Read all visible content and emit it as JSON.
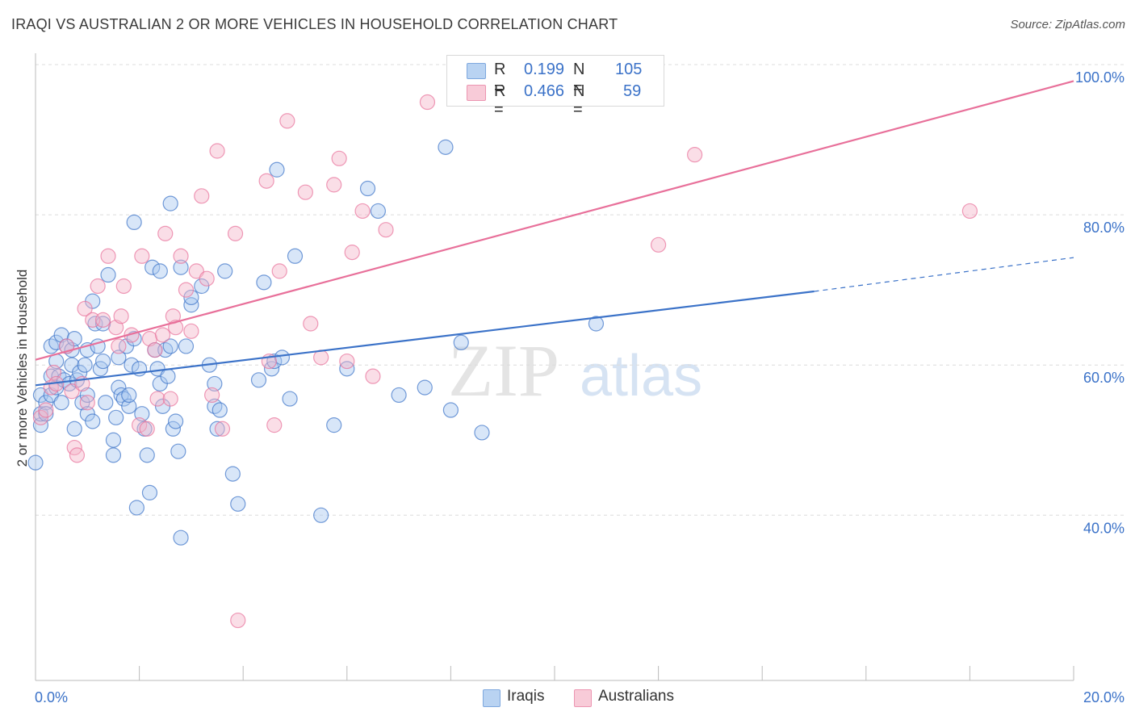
{
  "title": "IRAQI VS AUSTRALIAN 2 OR MORE VEHICLES IN HOUSEHOLD CORRELATION CHART",
  "source": "Source: ZipAtlas.com",
  "watermark": {
    "zip": "ZIP",
    "atlas": "atlas"
  },
  "legend": [
    {
      "swatch_color": "#a8c8ef",
      "r_label": "R =",
      "r_value": "0.199",
      "n_label": "N =",
      "n_value": "105"
    },
    {
      "swatch_color": "#f5b6c9",
      "r_label": "R =",
      "r_value": "0.466",
      "n_label": "N =",
      "n_value": "59"
    }
  ],
  "bottom_legend": [
    {
      "label": "Iraqis",
      "color": "#a8c8ef"
    },
    {
      "label": "Australians",
      "color": "#f5b6c9"
    }
  ],
  "chart_data": {
    "type": "scatter",
    "title": "IRAQI VS AUSTRALIAN 2 OR MORE VEHICLES IN HOUSEHOLD CORRELATION CHART",
    "xlabel": "",
    "ylabel": "2 or more Vehicles in Household",
    "xlim": [
      0,
      20
    ],
    "ylim": [
      18,
      100
    ],
    "x_tick_labels": [
      {
        "value": 0,
        "label": "0.0%"
      },
      {
        "value": 20,
        "label": "20.0%"
      }
    ],
    "y_tick_labels": [
      {
        "value": 40,
        "label": "40.0%"
      },
      {
        "value": 60,
        "label": "60.0%"
      },
      {
        "value": 80,
        "label": "80.0%"
      },
      {
        "value": 100,
        "label": "100.0%"
      }
    ],
    "grid": true,
    "series": [
      {
        "name": "Iraqis",
        "color": "#3b72c8",
        "fill": "#a8c8ef",
        "trend": {
          "x0": 0,
          "y0": 57.3,
          "x1": 15,
          "y1": 69.8,
          "dashed_to_x": 20,
          "dashed_to_y": 74.3
        },
        "points": [
          [
            0.0,
            47.0
          ],
          [
            0.1,
            52.0
          ],
          [
            0.1,
            53.5
          ],
          [
            0.1,
            56.0
          ],
          [
            0.2,
            55.0
          ],
          [
            0.2,
            53.5
          ],
          [
            0.3,
            56.0
          ],
          [
            0.3,
            58.5
          ],
          [
            0.3,
            62.5
          ],
          [
            0.4,
            57.0
          ],
          [
            0.4,
            60.5
          ],
          [
            0.4,
            63.0
          ],
          [
            0.45,
            58.5
          ],
          [
            0.5,
            55.0
          ],
          [
            0.5,
            64.0
          ],
          [
            0.55,
            58.0
          ],
          [
            0.6,
            62.5
          ],
          [
            0.65,
            57.5
          ],
          [
            0.7,
            60.0
          ],
          [
            0.7,
            62.0
          ],
          [
            0.75,
            51.5
          ],
          [
            0.75,
            63.5
          ],
          [
            0.8,
            58.0
          ],
          [
            0.85,
            59.0
          ],
          [
            0.9,
            55.0
          ],
          [
            0.95,
            60.0
          ],
          [
            1.0,
            53.5
          ],
          [
            1.0,
            56.0
          ],
          [
            1.0,
            62.0
          ],
          [
            1.1,
            68.5
          ],
          [
            1.1,
            52.5
          ],
          [
            1.15,
            65.5
          ],
          [
            1.2,
            62.5
          ],
          [
            1.25,
            59.5
          ],
          [
            1.3,
            60.5
          ],
          [
            1.3,
            65.5
          ],
          [
            1.35,
            55.0
          ],
          [
            1.4,
            72.0
          ],
          [
            1.5,
            48.0
          ],
          [
            1.5,
            50.0
          ],
          [
            1.55,
            53.0
          ],
          [
            1.6,
            57.0
          ],
          [
            1.6,
            61.0
          ],
          [
            1.65,
            56.0
          ],
          [
            1.7,
            55.5
          ],
          [
            1.75,
            62.5
          ],
          [
            1.8,
            54.5
          ],
          [
            1.8,
            56.0
          ],
          [
            1.85,
            60.0
          ],
          [
            1.9,
            63.5
          ],
          [
            1.9,
            79.0
          ],
          [
            1.95,
            41.0
          ],
          [
            2.0,
            59.5
          ],
          [
            2.05,
            53.5
          ],
          [
            2.1,
            51.5
          ],
          [
            2.15,
            48.0
          ],
          [
            2.2,
            43.0
          ],
          [
            2.25,
            73.0
          ],
          [
            2.3,
            62.0
          ],
          [
            2.35,
            59.5
          ],
          [
            2.4,
            57.5
          ],
          [
            2.4,
            72.5
          ],
          [
            2.45,
            54.5
          ],
          [
            2.5,
            62.0
          ],
          [
            2.55,
            58.5
          ],
          [
            2.6,
            62.5
          ],
          [
            2.6,
            81.5
          ],
          [
            2.65,
            51.5
          ],
          [
            2.7,
            52.5
          ],
          [
            2.75,
            48.5
          ],
          [
            2.8,
            73.0
          ],
          [
            2.8,
            37.0
          ],
          [
            2.9,
            62.5
          ],
          [
            3.0,
            68.0
          ],
          [
            3.0,
            69.0
          ],
          [
            3.2,
            70.5
          ],
          [
            3.35,
            60.0
          ],
          [
            3.45,
            54.5
          ],
          [
            3.45,
            57.5
          ],
          [
            3.5,
            51.5
          ],
          [
            3.55,
            54.0
          ],
          [
            3.65,
            72.5
          ],
          [
            3.8,
            45.5
          ],
          [
            3.9,
            41.5
          ],
          [
            4.3,
            58.0
          ],
          [
            4.4,
            71.0
          ],
          [
            4.55,
            59.5
          ],
          [
            4.6,
            60.5
          ],
          [
            4.65,
            86.0
          ],
          [
            4.75,
            61.0
          ],
          [
            4.9,
            55.5
          ],
          [
            5.0,
            74.5
          ],
          [
            5.5,
            40.0
          ],
          [
            5.75,
            52.0
          ],
          [
            6.0,
            59.5
          ],
          [
            6.4,
            83.5
          ],
          [
            6.6,
            80.5
          ],
          [
            7.0,
            56.0
          ],
          [
            7.5,
            57.0
          ],
          [
            7.9,
            89.0
          ],
          [
            8.0,
            54.0
          ],
          [
            8.2,
            63.0
          ],
          [
            8.6,
            51.0
          ],
          [
            10.8,
            65.5
          ]
        ]
      },
      {
        "name": "Australians",
        "color": "#e8709a",
        "fill": "#f5b6c9",
        "trend": {
          "x0": 0,
          "y0": 60.7,
          "x1": 20,
          "y1": 97.8
        },
        "points": [
          [
            0.1,
            53.0
          ],
          [
            0.2,
            54.0
          ],
          [
            0.3,
            57.0
          ],
          [
            0.35,
            59.0
          ],
          [
            0.4,
            57.5
          ],
          [
            0.6,
            62.5
          ],
          [
            0.7,
            56.5
          ],
          [
            0.75,
            49.0
          ],
          [
            0.8,
            48.0
          ],
          [
            0.9,
            57.5
          ],
          [
            0.95,
            67.5
          ],
          [
            1.0,
            55.0
          ],
          [
            1.1,
            66.0
          ],
          [
            1.2,
            70.5
          ],
          [
            1.3,
            66.0
          ],
          [
            1.4,
            74.5
          ],
          [
            1.55,
            65.0
          ],
          [
            1.6,
            62.5
          ],
          [
            1.65,
            66.5
          ],
          [
            1.7,
            70.5
          ],
          [
            1.85,
            64.0
          ],
          [
            2.0,
            52.0
          ],
          [
            2.05,
            74.5
          ],
          [
            2.15,
            51.5
          ],
          [
            2.2,
            63.5
          ],
          [
            2.3,
            62.0
          ],
          [
            2.35,
            55.5
          ],
          [
            2.45,
            64.0
          ],
          [
            2.5,
            77.5
          ],
          [
            2.6,
            55.5
          ],
          [
            2.65,
            66.5
          ],
          [
            2.7,
            65.0
          ],
          [
            2.8,
            74.5
          ],
          [
            2.9,
            70.0
          ],
          [
            3.0,
            64.5
          ],
          [
            3.1,
            72.5
          ],
          [
            3.2,
            82.5
          ],
          [
            3.3,
            71.5
          ],
          [
            3.4,
            56.0
          ],
          [
            3.5,
            88.5
          ],
          [
            3.6,
            51.5
          ],
          [
            3.85,
            77.5
          ],
          [
            3.9,
            26.0
          ],
          [
            4.45,
            84.5
          ],
          [
            4.5,
            60.5
          ],
          [
            4.6,
            52.0
          ],
          [
            4.7,
            72.5
          ],
          [
            4.85,
            92.5
          ],
          [
            5.2,
            83.0
          ],
          [
            5.3,
            65.5
          ],
          [
            5.5,
            61.0
          ],
          [
            5.75,
            84.0
          ],
          [
            5.85,
            87.5
          ],
          [
            6.0,
            60.5
          ],
          [
            6.1,
            75.0
          ],
          [
            6.3,
            80.5
          ],
          [
            6.5,
            58.5
          ],
          [
            6.75,
            78.0
          ],
          [
            7.55,
            95.0
          ],
          [
            12.0,
            76.0
          ],
          [
            12.7,
            88.0
          ],
          [
            18.0,
            80.5
          ]
        ]
      }
    ]
  }
}
